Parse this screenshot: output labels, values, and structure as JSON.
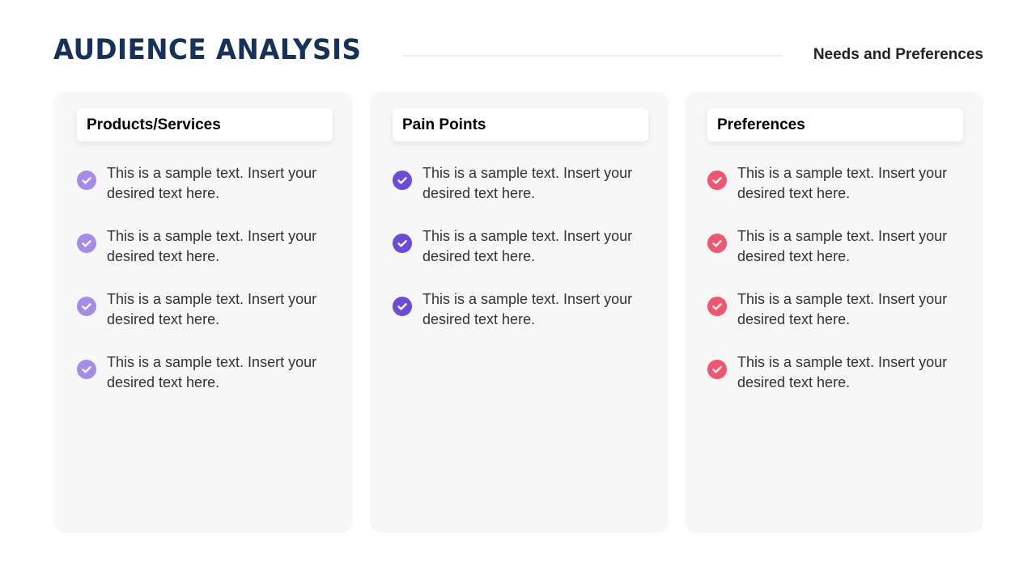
{
  "title": "AUDIENCE ANALYSIS",
  "subtitle": "Needs and Preferences",
  "columns": [
    {
      "heading": "Products/Services",
      "color": "#a78bea",
      "icon": "check-circle-icon",
      "items": [
        "This is a sample text. Insert your desired text here.",
        "This is a sample text. Insert your desired text here.",
        "This is a sample text. Insert your desired text here.",
        "This is a sample text. Insert your desired text here."
      ]
    },
    {
      "heading": "Pain Points",
      "color": "#6c4bdb",
      "icon": "check-circle-icon",
      "items": [
        "This is a sample text. Insert your desired text here.",
        "This is a sample text. Insert your desired text here.",
        "This is a sample text. Insert your desired text here."
      ]
    },
    {
      "heading": "Preferences",
      "color": "#f0566e",
      "icon": "check-circle-icon",
      "items": [
        "This is a sample text. Insert your desired text here.",
        "This is a sample text. Insert your desired text here.",
        "This is a sample text. Insert your desired text here.",
        "This is a sample text. Insert your desired text here."
      ]
    }
  ]
}
